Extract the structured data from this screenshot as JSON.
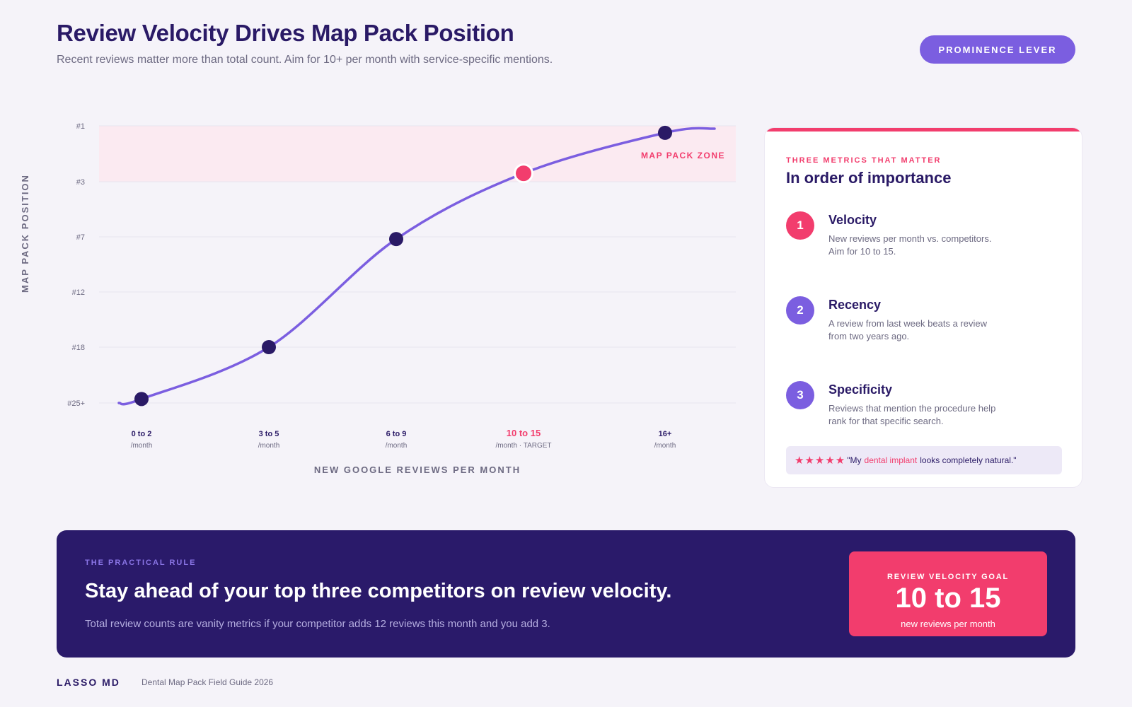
{
  "header": {
    "title": "Review Velocity Drives Map Pack Position",
    "subtitle": "Recent reviews matter more than total count. Aim for 10+ per month with service-specific mentions.",
    "pill_label": "PROMINENCE LEVER"
  },
  "chart_data": {
    "type": "line",
    "ylabel": "MAP PACK POSITION",
    "xlabel": "NEW GOOGLE REVIEWS PER MONTH",
    "y_ticks": [
      "#1",
      "#3",
      "#7",
      "#12",
      "#18",
      "#25+"
    ],
    "zone_label": "MAP PACK ZONE",
    "zone_range": [
      "#1",
      "#3"
    ],
    "categories": [
      {
        "label": "0 to 2",
        "sub": "/month",
        "highlight": false
      },
      {
        "label": "3 to 5",
        "sub": "/month",
        "highlight": false
      },
      {
        "label": "6 to 9",
        "sub": "/month",
        "highlight": false
      },
      {
        "label": "10 to 15",
        "sub": "/month · TARGET",
        "highlight": true
      },
      {
        "label": "16+",
        "sub": "/month",
        "highlight": false
      }
    ],
    "values": [
      24.5,
      18,
      7.2,
      2.7,
      1.25
    ],
    "colors": {
      "line": "#7b5ee0",
      "point": "#2a1a66",
      "target": "#f23d6d",
      "zone": "#fbeaf1",
      "grid": "#e8e4ee"
    }
  },
  "card": {
    "eyebrow": "THREE METRICS THAT MATTER",
    "heading": "In order of importance",
    "metrics": [
      {
        "num": "1",
        "name": "Velocity",
        "desc": "New reviews per month vs. competitors. Aim for 10 to 15.",
        "color": "#f23d6d"
      },
      {
        "num": "2",
        "name": "Recency",
        "desc": "A review from last week beats a review from two years ago.",
        "color": "#7b5ee0"
      },
      {
        "num": "3",
        "name": "Specificity",
        "desc": "Reviews that mention the procedure help rank for that specific search.",
        "color": "#7b5ee0"
      }
    ],
    "quote": {
      "stars": "★★★★★",
      "pre": "\"My",
      "highlight": "dental implant",
      "post": "looks completely natural.\""
    }
  },
  "banner": {
    "eyebrow": "THE PRACTICAL RULE",
    "headline": "Stay ahead of your top three competitors on review velocity.",
    "sub": "Total review counts are vanity metrics if your competitor adds 12 reviews this month and you add 3.",
    "goal_label": "REVIEW VELOCITY GOAL",
    "goal_value": "10 to 15",
    "goal_unit": "new reviews per month"
  },
  "footer": {
    "brand": "LASSO MD",
    "guide": "Dental Map Pack Field Guide 2026"
  }
}
